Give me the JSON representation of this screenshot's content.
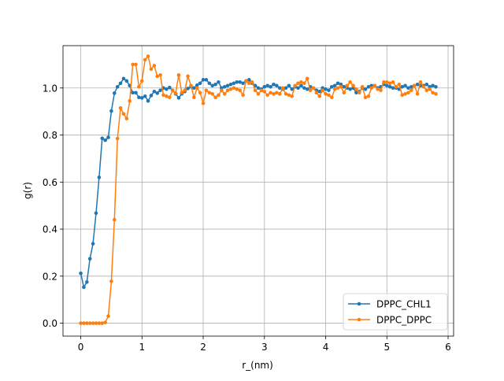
{
  "chart_data": {
    "type": "line",
    "title": "",
    "xlabel": "r_(nm)",
    "ylabel": "g(r)",
    "xlim": [
      -0.29,
      6.09
    ],
    "ylim": [
      -0.055,
      1.18
    ],
    "xticks": [
      0,
      1,
      2,
      3,
      4,
      5,
      6
    ],
    "yticks": [
      0.0,
      0.2,
      0.4,
      0.6,
      0.8,
      1.0
    ],
    "xtick_labels": [
      "0",
      "1",
      "2",
      "3",
      "4",
      "5",
      "6"
    ],
    "ytick_labels": [
      "0.0",
      "0.2",
      "0.4",
      "0.6",
      "0.8",
      "1.0"
    ],
    "grid": true,
    "legend_position": "lower-right",
    "series": [
      {
        "name": "DPPC_CHL1",
        "color": "#1f77b4",
        "marker": "circle",
        "x": [
          0.0,
          0.05,
          0.1,
          0.15,
          0.2,
          0.25,
          0.3,
          0.35,
          0.4,
          0.45,
          0.5,
          0.55,
          0.6,
          0.65,
          0.7,
          0.75,
          0.8,
          0.85,
          0.9,
          0.95,
          1.0,
          1.05,
          1.1,
          1.15,
          1.2,
          1.25,
          1.3,
          1.35,
          1.4,
          1.45,
          1.5,
          1.55,
          1.6,
          1.65,
          1.7,
          1.75,
          1.8,
          1.85,
          1.9,
          1.95,
          2.0,
          2.05,
          2.1,
          2.15,
          2.2,
          2.25,
          2.3,
          2.35,
          2.4,
          2.45,
          2.5,
          2.55,
          2.6,
          2.65,
          2.7,
          2.75,
          2.8,
          2.85,
          2.9,
          2.95,
          3.0,
          3.05,
          3.1,
          3.15,
          3.2,
          3.25,
          3.3,
          3.35,
          3.4,
          3.45,
          3.5,
          3.55,
          3.6,
          3.65,
          3.7,
          3.75,
          3.8,
          3.85,
          3.9,
          3.95,
          4.0,
          4.05,
          4.1,
          4.15,
          4.2,
          4.25,
          4.3,
          4.35,
          4.4,
          4.45,
          4.5,
          4.55,
          4.6,
          4.65,
          4.7,
          4.75,
          4.8,
          4.85,
          4.9,
          4.95,
          5.0,
          5.05,
          5.1,
          5.15,
          5.2,
          5.25,
          5.3,
          5.35,
          5.4,
          5.45,
          5.5,
          5.55,
          5.6,
          5.65,
          5.7,
          5.75,
          5.8
        ],
        "y": [
          0.212,
          0.153,
          0.175,
          0.274,
          0.338,
          0.468,
          0.62,
          0.786,
          0.778,
          0.79,
          0.902,
          0.978,
          1.005,
          1.02,
          1.04,
          1.03,
          1.01,
          0.98,
          0.98,
          0.96,
          0.958,
          0.965,
          0.945,
          0.968,
          0.985,
          0.978,
          0.99,
          1.0,
          0.995,
          1.002,
          0.99,
          0.975,
          0.958,
          0.975,
          0.985,
          0.998,
          1.005,
          1.0,
          1.012,
          1.02,
          1.035,
          1.035,
          1.02,
          1.01,
          1.015,
          1.025,
          1.0,
          1.005,
          1.01,
          1.015,
          1.02,
          1.025,
          1.025,
          1.02,
          1.03,
          1.035,
          1.02,
          1.01,
          1.0,
          0.995,
          1.005,
          1.01,
          1.005,
          1.015,
          1.01,
          1.0,
          0.995,
          1.0,
          1.01,
          0.995,
          1.005,
          1.0,
          1.01,
          1.0,
          0.995,
          1.005,
          1.0,
          0.99,
          0.985,
          1.0,
          0.995,
          0.99,
          1.005,
          1.01,
          1.02,
          1.015,
          1.005,
          1.0,
          0.995,
          1.0,
          0.98,
          0.985,
          1.0,
          0.995,
          1.005,
          1.01,
          1.01,
          1.0,
          1.005,
          1.015,
          1.01,
          1.005,
          1.0,
          1.0,
          0.995,
          1.005,
          1.01,
          1.0,
          1.005,
          1.01,
          1.015,
          1.01,
          1.01,
          1.015,
          1.005,
          1.01,
          1.005
        ]
      },
      {
        "name": "DPPC_DPPC",
        "color": "#ff7f0e",
        "marker": "circle",
        "x": [
          0.0,
          0.05,
          0.1,
          0.15,
          0.2,
          0.25,
          0.3,
          0.35,
          0.4,
          0.45,
          0.5,
          0.55,
          0.6,
          0.65,
          0.7,
          0.75,
          0.8,
          0.85,
          0.9,
          0.95,
          1.0,
          1.05,
          1.1,
          1.15,
          1.2,
          1.25,
          1.3,
          1.35,
          1.4,
          1.45,
          1.5,
          1.55,
          1.6,
          1.65,
          1.7,
          1.75,
          1.8,
          1.85,
          1.9,
          1.95,
          2.0,
          2.05,
          2.1,
          2.15,
          2.2,
          2.25,
          2.3,
          2.35,
          2.4,
          2.45,
          2.5,
          2.55,
          2.6,
          2.65,
          2.7,
          2.75,
          2.8,
          2.85,
          2.9,
          2.95,
          3.0,
          3.05,
          3.1,
          3.15,
          3.2,
          3.25,
          3.3,
          3.35,
          3.4,
          3.45,
          3.5,
          3.55,
          3.6,
          3.65,
          3.7,
          3.75,
          3.8,
          3.85,
          3.9,
          3.95,
          4.0,
          4.05,
          4.1,
          4.15,
          4.2,
          4.25,
          4.3,
          4.35,
          4.4,
          4.45,
          4.5,
          4.55,
          4.6,
          4.65,
          4.7,
          4.75,
          4.8,
          4.85,
          4.9,
          4.95,
          5.0,
          5.05,
          5.1,
          5.15,
          5.2,
          5.25,
          5.3,
          5.35,
          5.4,
          5.45,
          5.5,
          5.55,
          5.6,
          5.65,
          5.7,
          5.75,
          5.8
        ],
        "y": [
          0.0,
          0.0,
          0.0,
          0.0,
          0.0,
          0.0,
          0.0,
          0.0,
          0.003,
          0.03,
          0.178,
          0.44,
          0.785,
          0.915,
          0.89,
          0.87,
          0.945,
          1.1,
          1.1,
          1.005,
          1.03,
          1.12,
          1.135,
          1.08,
          1.095,
          1.05,
          1.055,
          0.97,
          0.965,
          0.96,
          0.99,
          0.978,
          1.055,
          0.98,
          0.99,
          1.05,
          1.01,
          0.96,
          1.0,
          0.98,
          0.935,
          0.99,
          0.98,
          0.975,
          0.96,
          0.97,
          0.99,
          0.975,
          0.99,
          0.995,
          1.0,
          0.995,
          0.99,
          0.97,
          1.03,
          1.02,
          1.025,
          0.99,
          0.975,
          0.99,
          0.985,
          0.97,
          0.98,
          0.975,
          0.98,
          0.975,
          1.0,
          0.975,
          0.97,
          0.965,
          1.01,
          1.02,
          1.025,
          1.02,
          1.04,
          0.99,
          1.0,
          0.98,
          0.965,
          0.99,
          0.975,
          0.97,
          0.96,
          0.995,
          1.0,
          1.005,
          0.98,
          1.01,
          1.025,
          1.01,
          0.995,
          0.98,
          1.005,
          0.96,
          0.965,
          1.0,
          1.01,
          0.995,
          0.99,
          1.025,
          1.025,
          1.02,
          1.025,
          1.005,
          1.015,
          0.97,
          0.975,
          0.98,
          0.99,
          1.01,
          0.975,
          1.025,
          1.005,
          0.99,
          0.995,
          0.98,
          0.975
        ]
      }
    ]
  }
}
